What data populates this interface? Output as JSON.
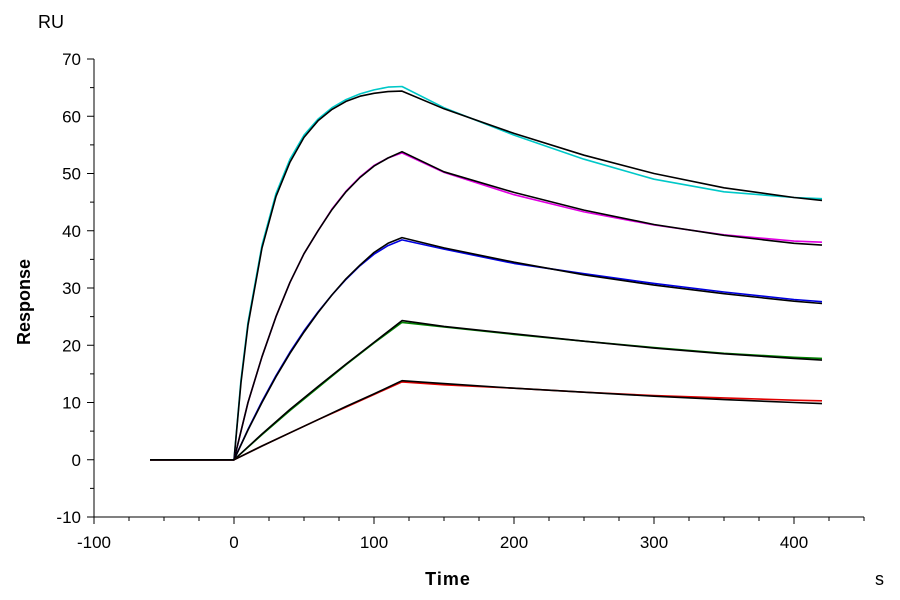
{
  "chart_data": {
    "type": "line",
    "title": "",
    "xlabel": "Time",
    "ylabel": "Response",
    "x_unit": "s",
    "y_unit": "RU",
    "xlim": [
      -100,
      450
    ],
    "ylim": [
      -10,
      70
    ],
    "x_ticks": [
      -100,
      0,
      100,
      200,
      300,
      400
    ],
    "y_ticks": [
      -10,
      0,
      10,
      20,
      30,
      40,
      50,
      60,
      70
    ],
    "grid": false,
    "legend": "none",
    "series": [
      {
        "color": "#00c8c8",
        "x": [
          -60,
          0,
          5,
          10,
          20,
          30,
          40,
          50,
          60,
          70,
          80,
          90,
          100,
          110,
          120,
          150,
          200,
          250,
          300,
          350,
          400,
          420
        ],
        "y": [
          0,
          0,
          14,
          24,
          37.5,
          46.5,
          52.5,
          56.7,
          59.5,
          61.5,
          62.9,
          63.9,
          64.6,
          65.1,
          65.2,
          61.5,
          56.7,
          52.5,
          49,
          46.8,
          45.8,
          45.6
        ]
      },
      {
        "color": "#000000",
        "x": [
          -60,
          0,
          5,
          10,
          20,
          30,
          40,
          50,
          60,
          70,
          80,
          90,
          100,
          110,
          120,
          150,
          200,
          250,
          300,
          350,
          400,
          420
        ],
        "y": [
          0,
          0,
          13.5,
          23.5,
          37,
          46,
          52,
          56.3,
          59.2,
          61.2,
          62.6,
          63.5,
          64,
          64.3,
          64.4,
          61.3,
          57,
          53.2,
          50,
          47.5,
          45.8,
          45.3
        ]
      },
      {
        "color": "#e000e0",
        "x": [
          -60,
          0,
          10,
          20,
          30,
          40,
          50,
          60,
          70,
          80,
          90,
          100,
          110,
          120,
          150,
          200,
          250,
          300,
          350,
          400,
          420
        ],
        "y": [
          0,
          0,
          10,
          18,
          25,
          31,
          36,
          40,
          43.8,
          46.9,
          49.4,
          51.4,
          52.7,
          53.6,
          50.2,
          46.3,
          43.3,
          41,
          39.3,
          38.2,
          38
        ]
      },
      {
        "color": "#000000",
        "x": [
          -60,
          0,
          10,
          20,
          30,
          40,
          50,
          60,
          70,
          80,
          90,
          100,
          110,
          120,
          150,
          200,
          250,
          300,
          350,
          400,
          420
        ],
        "y": [
          0,
          0,
          10,
          18,
          25,
          31,
          36,
          40,
          43.7,
          46.8,
          49.3,
          51.3,
          52.7,
          53.8,
          50.3,
          46.7,
          43.6,
          41.1,
          39.2,
          37.8,
          37.5
        ]
      },
      {
        "color": "#0000e0",
        "x": [
          -60,
          0,
          10,
          20,
          30,
          40,
          50,
          60,
          70,
          80,
          90,
          100,
          110,
          120,
          150,
          200,
          250,
          300,
          350,
          400,
          420
        ],
        "y": [
          0,
          0,
          5.3,
          10.2,
          14.7,
          18.8,
          22.5,
          25.8,
          28.8,
          31.5,
          33.9,
          35.9,
          37.4,
          38.4,
          36.8,
          34.3,
          32.5,
          30.8,
          29.3,
          28,
          27.6
        ]
      },
      {
        "color": "#000000",
        "x": [
          -60,
          0,
          10,
          20,
          30,
          40,
          50,
          60,
          70,
          80,
          90,
          100,
          110,
          120,
          150,
          200,
          250,
          300,
          350,
          400,
          420
        ],
        "y": [
          0,
          0,
          5.2,
          10,
          14.5,
          18.6,
          22.3,
          25.7,
          28.8,
          31.6,
          34,
          36.2,
          37.8,
          38.8,
          37,
          34.5,
          32.3,
          30.5,
          29,
          27.7,
          27.3
        ]
      },
      {
        "color": "#008000",
        "x": [
          -60,
          0,
          20,
          40,
          60,
          80,
          100,
          120,
          150,
          200,
          250,
          300,
          350,
          400,
          420
        ],
        "y": [
          0,
          0,
          4.4,
          8.6,
          12.6,
          16.6,
          20.4,
          24,
          23.2,
          21.9,
          20.7,
          19.6,
          18.6,
          17.9,
          17.7
        ]
      },
      {
        "color": "#000000",
        "x": [
          -60,
          0,
          20,
          40,
          60,
          80,
          100,
          120,
          150,
          200,
          250,
          300,
          350,
          400,
          420
        ],
        "y": [
          0,
          0,
          4.5,
          8.8,
          12.8,
          16.7,
          20.5,
          24.3,
          23.3,
          22,
          20.7,
          19.5,
          18.5,
          17.7,
          17.4
        ]
      },
      {
        "color": "#e00000",
        "x": [
          -60,
          0,
          20,
          40,
          60,
          80,
          100,
          120,
          150,
          200,
          250,
          300,
          350,
          400,
          420
        ],
        "y": [
          0,
          0,
          2.4,
          4.7,
          7,
          9.2,
          11.4,
          13.6,
          13.1,
          12.5,
          11.8,
          11.2,
          10.8,
          10.4,
          10.3
        ]
      },
      {
        "color": "#000000",
        "x": [
          -60,
          0,
          20,
          40,
          60,
          80,
          100,
          120,
          150,
          200,
          250,
          300,
          350,
          400,
          420
        ],
        "y": [
          0,
          0,
          2.4,
          4.7,
          7,
          9.3,
          11.5,
          13.8,
          13.3,
          12.5,
          11.8,
          11.1,
          10.5,
          10,
          9.8
        ]
      }
    ]
  }
}
